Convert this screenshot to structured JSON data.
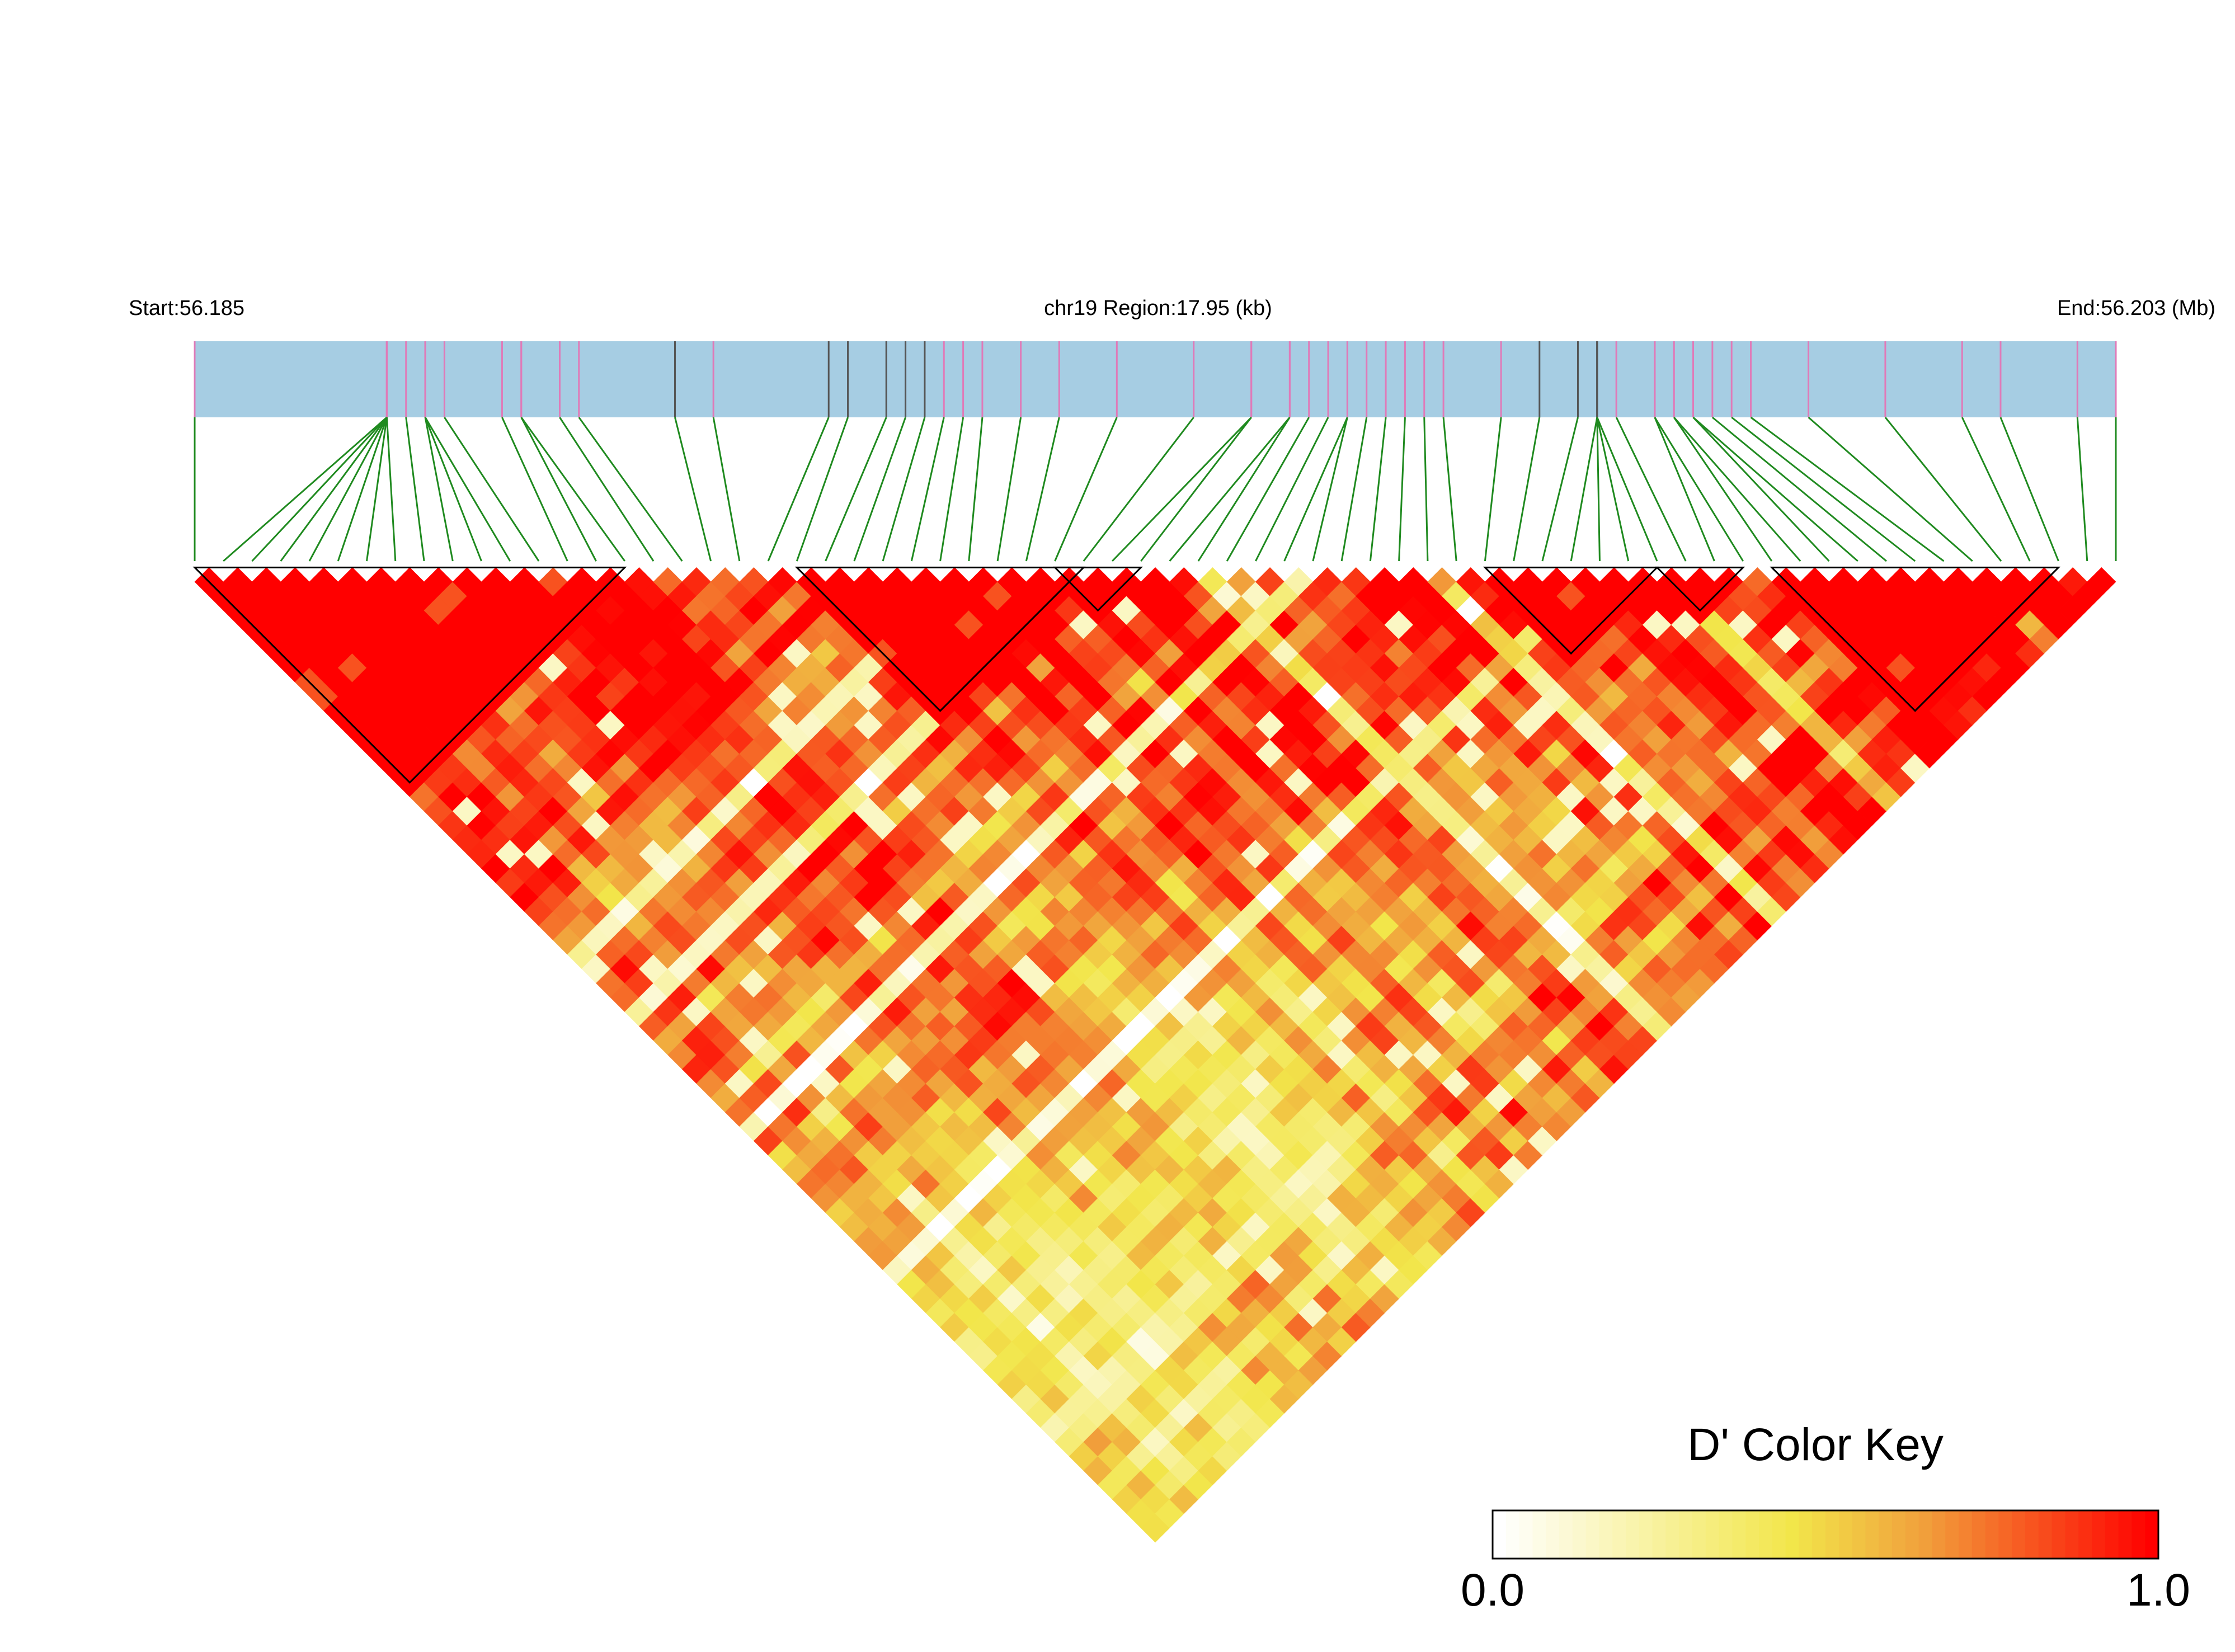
{
  "labels": {
    "start": "Start:56.185",
    "region": "chr19 Region:17.95 (kb)",
    "end": "End:56.203 (Mb)"
  },
  "colors": {
    "gene_bar": "#a6cde3",
    "snp_line_pink": "#e07ab8",
    "snp_line_dark": "#555555",
    "connector": "#1f8a1f",
    "ld_high": "#ff0000",
    "block_outline": "#000000"
  },
  "chart_data": {
    "type": "heatmap",
    "title": "",
    "matrix": "pairwise linkage disequilibrium (D') between SNPs",
    "n_snps": 68,
    "position_range_mb": [
      56.185,
      56.203
    ],
    "region_kb": 17.95,
    "snp_positions_fraction": [
      0.0,
      0.1,
      0.1,
      0.1,
      0.1,
      0.1,
      0.1,
      0.1,
      0.11,
      0.12,
      0.12,
      0.12,
      0.13,
      0.16,
      0.17,
      0.17,
      0.19,
      0.2,
      0.25,
      0.27,
      0.33,
      0.34,
      0.36,
      0.37,
      0.38,
      0.39,
      0.4,
      0.41,
      0.43,
      0.45,
      0.48,
      0.52,
      0.55,
      0.55,
      0.57,
      0.57,
      0.58,
      0.59,
      0.6,
      0.6,
      0.61,
      0.62,
      0.63,
      0.64,
      0.65,
      0.68,
      0.7,
      0.72,
      0.73,
      0.73,
      0.73,
      0.73,
      0.74,
      0.76,
      0.76,
      0.77,
      0.77,
      0.78,
      0.78,
      0.79,
      0.8,
      0.81,
      0.84,
      0.88,
      0.92,
      0.94,
      0.98,
      1.0
    ],
    "haplotype_blocks": [
      [
        0,
        15
      ],
      [
        21,
        31
      ],
      [
        30,
        33
      ],
      [
        45,
        51
      ],
      [
        51,
        54
      ],
      [
        55,
        65
      ]
    ],
    "color_key": {
      "title": "D' Color Key",
      "min_label": "0.0",
      "max_label": "1.0",
      "range": [
        0.0,
        1.0
      ],
      "stops": [
        "#ffffff",
        "#f2e64a",
        "#f1a03c",
        "#ff0000"
      ]
    }
  }
}
